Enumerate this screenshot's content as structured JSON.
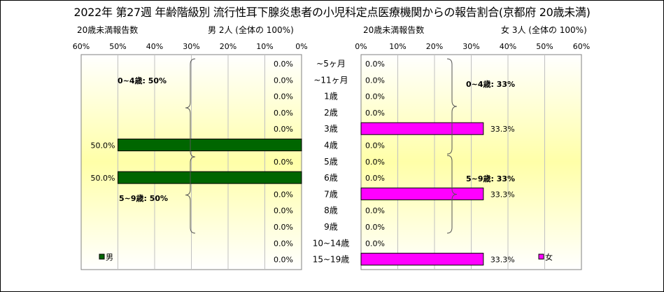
{
  "title": "2022年 第27週 年齢階級別 流行性耳下腺炎患者の小児科定点医療機関からの報告割合(京都府 20歳未満)",
  "left_header": {
    "subtitle": "20歳未満報告数",
    "summary": "男 2人 (全体の 100%)"
  },
  "right_header": {
    "subtitle": "20歳未満報告数",
    "summary": "女 3人 (全体の 100%)"
  },
  "chart_data": [
    {
      "type": "bar",
      "orientation": "horizontal",
      "direction": "right-to-left",
      "categories": [
        "~5ヶ月",
        "~11ヶ月",
        "1歳",
        "2歳",
        "3歳",
        "4歳",
        "5歳",
        "6歳",
        "7歳",
        "8歳",
        "9歳",
        "10~14歳",
        "15~19歳"
      ],
      "series": [
        {
          "name": "男",
          "color": "#006600",
          "values": [
            0,
            0,
            0,
            0,
            0,
            50,
            0,
            50,
            0,
            0,
            0,
            0,
            0
          ],
          "labels": [
            "0.0%",
            "0.0%",
            "0.0%",
            "0.0%",
            "0.0%",
            "50.0%",
            "0.0%",
            "50.0%",
            "0.0%",
            "0.0%",
            "0.0%",
            "0.0%",
            "0.0%"
          ]
        }
      ],
      "xlim": [
        0,
        60
      ],
      "tick_labels": [
        "0%",
        "10%",
        "20%",
        "30%",
        "40%",
        "50%",
        "60%"
      ],
      "annotations": [
        "0~4歳: 50%",
        "5~9歳: 50%"
      ],
      "legend": "bottom-left"
    },
    {
      "type": "bar",
      "orientation": "horizontal",
      "direction": "left-to-right",
      "categories": [
        "~5ヶ月",
        "~11ヶ月",
        "1歳",
        "2歳",
        "3歳",
        "4歳",
        "5歳",
        "6歳",
        "7歳",
        "8歳",
        "9歳",
        "10~14歳",
        "15~19歳"
      ],
      "series": [
        {
          "name": "女",
          "color": "#ff00ff",
          "values": [
            0,
            0,
            0,
            0,
            33.3,
            0,
            0,
            0,
            33.3,
            0,
            0,
            0,
            33.3
          ],
          "labels": [
            "0.0%",
            "0.0%",
            "0.0%",
            "0.0%",
            "33.3%",
            "0.0%",
            "0.0%",
            "0.0%",
            "33.3%",
            "0.0%",
            "0.0%",
            "0.0%",
            "33.3%"
          ]
        }
      ],
      "xlim": [
        0,
        60
      ],
      "tick_labels": [
        "0%",
        "10%",
        "20%",
        "30%",
        "40%",
        "50%",
        "60%"
      ],
      "annotations": [
        "0~4歳: 33%",
        "5~9歳: 33%"
      ],
      "legend": "bottom-right"
    }
  ]
}
